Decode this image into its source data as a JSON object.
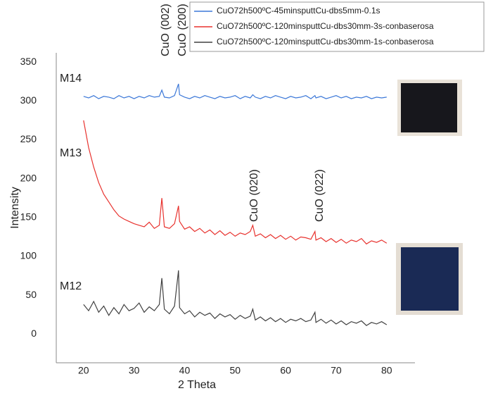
{
  "chart_data": {
    "type": "line",
    "x_label": "2 Theta",
    "y_label": "Intensity",
    "xlim": [
      14.6,
      85.6
    ],
    "ylim": [
      -37,
      362
    ],
    "xticks": [
      20,
      30,
      40,
      50,
      60,
      70,
      80
    ],
    "yticks": [
      0,
      50,
      100,
      150,
      200,
      250,
      300,
      350
    ],
    "grid": false,
    "legend": "top-right",
    "annotations": [
      "CuO (002)",
      "CuO (200)",
      "CuO (020)",
      "CuO (022)",
      "M14",
      "M13",
      "M12"
    ],
    "x": [
      20,
      21,
      22,
      23,
      24,
      25,
      26,
      27,
      28,
      29,
      30,
      31,
      32,
      33,
      34,
      35,
      35.5,
      36,
      37,
      38,
      38.8,
      39,
      40,
      41,
      42,
      43,
      44,
      45,
      46,
      47,
      48,
      49,
      50,
      51,
      52,
      53,
      53.5,
      54,
      55,
      56,
      57,
      58,
      59,
      60,
      61,
      62,
      63,
      64,
      65,
      65.8,
      66,
      67,
      68,
      69,
      70,
      71,
      72,
      73,
      74,
      75,
      76,
      77,
      78,
      79,
      80
    ],
    "series": [
      {
        "name": "CuO72h500ºC-45minsputtCu-dbs5mm-0.1s",
        "color": "#3c78d8",
        "values": [
          306,
          304,
          307,
          303,
          306,
          305,
          303,
          307,
          304,
          306,
          303,
          306,
          304,
          307,
          305,
          306,
          314,
          305,
          304,
          307,
          322,
          308,
          305,
          303,
          306,
          304,
          307,
          305,
          303,
          306,
          304,
          305,
          307,
          303,
          306,
          304,
          308,
          305,
          303,
          306,
          304,
          307,
          305,
          303,
          306,
          304,
          305,
          307,
          303,
          307,
          304,
          306,
          303,
          305,
          307,
          304,
          306,
          303,
          305,
          304,
          306,
          303,
          305,
          304,
          305
        ]
      },
      {
        "name": "CuO72h500ºC-120minsputtCu-dbs30mm-3s-conbaserosa",
        "color": "#e8322e",
        "values": [
          275,
          240,
          215,
          195,
          180,
          170,
          160,
          152,
          148,
          145,
          142,
          140,
          138,
          144,
          136,
          140,
          175,
          138,
          136,
          142,
          165,
          145,
          135,
          138,
          132,
          136,
          130,
          134,
          128,
          133,
          127,
          131,
          126,
          130,
          128,
          132,
          140,
          126,
          129,
          124,
          128,
          123,
          127,
          122,
          126,
          121,
          125,
          124,
          122,
          132,
          121,
          124,
          119,
          123,
          118,
          122,
          117,
          121,
          119,
          123,
          116,
          120,
          118,
          121,
          117
        ]
      },
      {
        "name": "CuO72h500ºC-120minsputtCu-dbs30mm-1s-conbaserosa",
        "color": "#404040",
        "values": [
          38,
          30,
          42,
          28,
          36,
          24,
          34,
          26,
          38,
          30,
          33,
          40,
          28,
          35,
          30,
          38,
          72,
          32,
          26,
          36,
          82,
          34,
          26,
          30,
          22,
          28,
          24,
          27,
          20,
          26,
          22,
          25,
          19,
          24,
          20,
          23,
          32,
          18,
          22,
          17,
          21,
          16,
          20,
          15,
          19,
          17,
          20,
          16,
          18,
          28,
          15,
          19,
          14,
          18,
          13,
          17,
          12,
          16,
          14,
          17,
          11,
          15,
          13,
          16,
          12
        ]
      }
    ]
  }
}
